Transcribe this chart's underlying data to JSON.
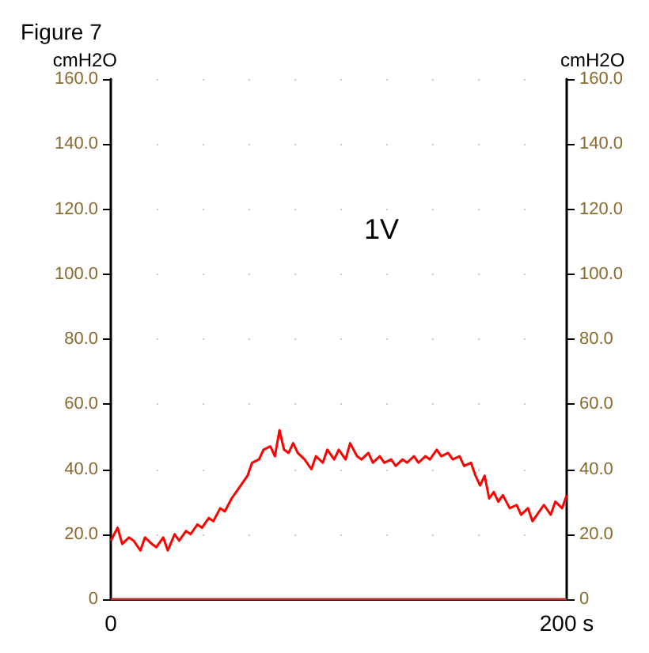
{
  "chart_data": {
    "type": "line",
    "title": "Figure 7",
    "ylabel": "cmH2O",
    "y2label": "cmH2O",
    "annotations": [
      "1V"
    ],
    "x": [
      0,
      3,
      5,
      8,
      10,
      13,
      15,
      18,
      20,
      23,
      25,
      28,
      30,
      33,
      35,
      38,
      40,
      43,
      45,
      48,
      50,
      53,
      55,
      58,
      60,
      62,
      65,
      67,
      70,
      72,
      74,
      76,
      78,
      80,
      82,
      85,
      88,
      90,
      93,
      95,
      98,
      100,
      103,
      105,
      108,
      110,
      113,
      115,
      118,
      120,
      123,
      125,
      128,
      130,
      133,
      135,
      138,
      140,
      143,
      145,
      148,
      150,
      153,
      155,
      158,
      160,
      162,
      164,
      166,
      168,
      170,
      172,
      175,
      178,
      180,
      183,
      185,
      188,
      190,
      193,
      195,
      198,
      200
    ],
    "series": [
      {
        "color": "#ff0000",
        "values": [
          18,
          22,
          17,
          19,
          18,
          15,
          19,
          17,
          16,
          19,
          15,
          20,
          18,
          21,
          20,
          23,
          22,
          25,
          24,
          28,
          27,
          31,
          33,
          36,
          38,
          42,
          43,
          46,
          47,
          44,
          52,
          46,
          45,
          48,
          45,
          43,
          40,
          44,
          42,
          46,
          43,
          46,
          43,
          48,
          44,
          43,
          45,
          42,
          44,
          42,
          43,
          41,
          43,
          42,
          44,
          42,
          44,
          43,
          46,
          44,
          45,
          43,
          44,
          41,
          42,
          38,
          35,
          38,
          31,
          33,
          30,
          32,
          28,
          29,
          26,
          28,
          24,
          27,
          29,
          26,
          30,
          28,
          32
        ]
      },
      {
        "color": "#b03030",
        "x": [
          0,
          200
        ],
        "values": [
          0,
          0
        ]
      }
    ],
    "xlim": [
      0,
      200
    ],
    "xticks": [
      {
        "value": 0,
        "label": "0"
      },
      {
        "value": 200,
        "label": "200 s"
      }
    ],
    "ylim": [
      0,
      160
    ],
    "yticks": [
      0,
      {
        "value": 20,
        "label": "20.0"
      },
      {
        "value": 40,
        "label": "40.0"
      },
      {
        "value": 60,
        "label": "60.0"
      },
      {
        "value": 80,
        "label": "80.0"
      },
      {
        "value": 100,
        "label": "100.0"
      },
      {
        "value": 120,
        "label": "120.0"
      },
      {
        "value": 140,
        "label": "140.0"
      },
      {
        "value": 160,
        "label": "160.0"
      }
    ],
    "y2lim": [
      0,
      160
    ],
    "y2ticks": [
      0,
      {
        "value": 20,
        "label": "20.0"
      },
      {
        "value": 40,
        "label": "40.0"
      },
      {
        "value": 60,
        "label": "60.0"
      },
      {
        "value": 80,
        "label": "80.0"
      },
      {
        "value": 100,
        "label": "100.0"
      },
      {
        "value": 120,
        "label": "120.0"
      },
      {
        "value": 140,
        "label": "140.0"
      },
      {
        "value": 160,
        "label": "160.0"
      }
    ],
    "grid": "y",
    "marker": "none",
    "line_style": "solid"
  }
}
